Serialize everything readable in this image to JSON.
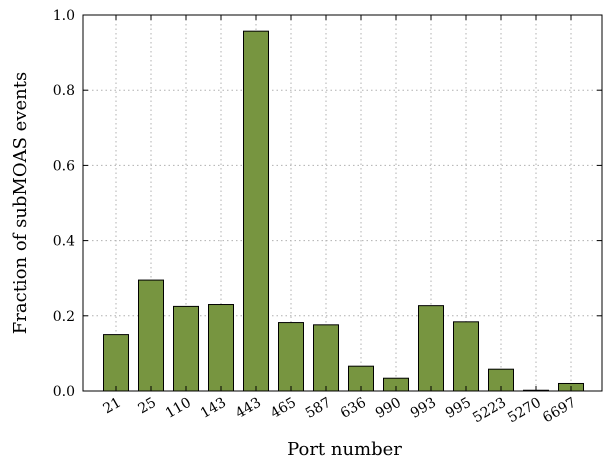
{
  "chart_data": {
    "type": "bar",
    "categories": [
      "21",
      "25",
      "110",
      "143",
      "443",
      "465",
      "587",
      "636",
      "990",
      "993",
      "995",
      "5223",
      "5270",
      "6697"
    ],
    "values": [
      0.15,
      0.295,
      0.225,
      0.23,
      0.957,
      0.182,
      0.176,
      0.066,
      0.034,
      0.227,
      0.184,
      0.058,
      0.002,
      0.02
    ],
    "xlabel": "Port number",
    "ylabel": "Fraction of subMOAS events",
    "ylim": [
      0.0,
      1.0
    ],
    "yticks": [
      "0.0",
      "0.2",
      "0.4",
      "0.6",
      "0.8",
      "1.0"
    ],
    "grid": true,
    "colors": {
      "bar": "#779540",
      "edge": "#000000",
      "grid": "#b0b0b0"
    }
  }
}
